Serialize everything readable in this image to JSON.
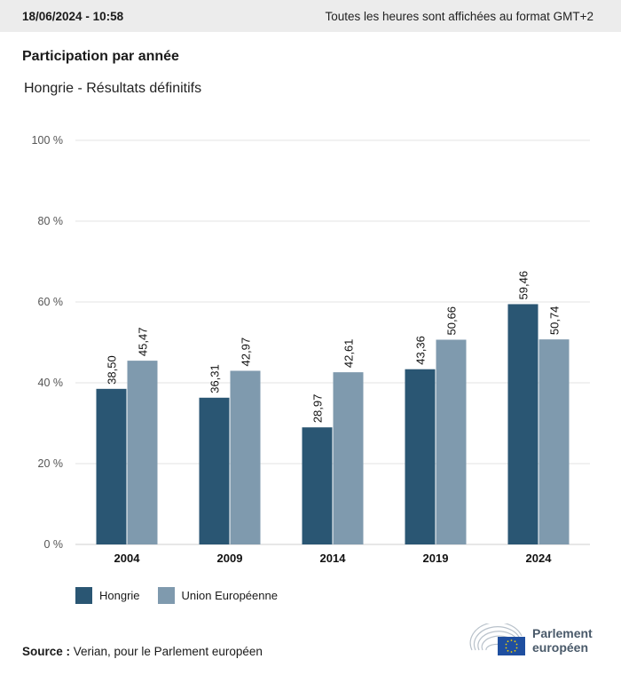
{
  "header": {
    "datetime": "18/06/2024 - 10:58",
    "timezone_note": "Toutes les heures sont affichées au format GMT+2"
  },
  "title": "Participation par année",
  "subtitle": "Hongrie - Résultats définitifs",
  "colors": {
    "hongrie": "#2a5673",
    "ue": "#7f9aae",
    "grid": "#e3e3e3",
    "axis": "#cfcfcf"
  },
  "chart_data": {
    "type": "bar",
    "title": "Participation par année",
    "subtitle": "Hongrie - Résultats définitifs",
    "xlabel": "",
    "ylabel": "",
    "categories": [
      "2004",
      "2009",
      "2014",
      "2019",
      "2024"
    ],
    "series": [
      {
        "name": "Hongrie",
        "values": [
          38.5,
          36.31,
          28.97,
          43.36,
          59.46
        ],
        "labels": [
          "38,50",
          "36,31",
          "28,97",
          "43,36",
          "59,46"
        ],
        "color": "#2a5673"
      },
      {
        "name": "Union Européenne",
        "values": [
          45.47,
          42.97,
          42.61,
          50.66,
          50.74
        ],
        "labels": [
          "45,47",
          "42,97",
          "42,61",
          "50,66",
          "50,74"
        ],
        "color": "#7f9aae"
      }
    ],
    "ylim": [
      0,
      100
    ],
    "yticks": [
      0,
      20,
      40,
      60,
      80,
      100
    ],
    "ytick_labels": [
      "0 %",
      "20 %",
      "40 %",
      "60 %",
      "80 %",
      "100 %"
    ],
    "grid": true,
    "legend": "bottom-left"
  },
  "legend": {
    "items": [
      "Hongrie",
      "Union Européenne"
    ]
  },
  "source": {
    "label": "Source :",
    "text": " Verian, pour le Parlement européen"
  },
  "logo": {
    "line1": "Parlement",
    "line2": "européen"
  }
}
